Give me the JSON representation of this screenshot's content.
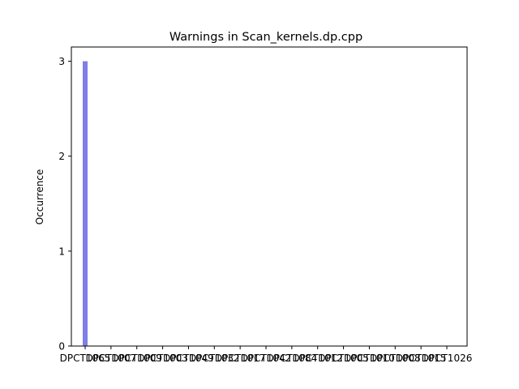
{
  "chart_data": {
    "type": "bar",
    "title": "Warnings in Scan_kernels.dp.cpp",
    "xlabel": "",
    "ylabel": "Occurrence",
    "ylim": [
      0,
      3.15
    ],
    "yticks": [
      0,
      1,
      2,
      3
    ],
    "grid": false,
    "categories": [
      "DPCT1065",
      "DPCT1007",
      "DPCT1009",
      "DPCT1003",
      "DPCT1049",
      "DPCT1032",
      "DPCT1017",
      "DPCT1042",
      "DPCT1084",
      "DPCT1012",
      "DPCT1005",
      "DPCT1010",
      "DPCT1008",
      "DPCT1015",
      "DPCT1026"
    ],
    "values": [
      3,
      0,
      0,
      0,
      0,
      0,
      0,
      0,
      0,
      0,
      0,
      0,
      0,
      0,
      0
    ],
    "bar_color": "#7f7fe8"
  }
}
